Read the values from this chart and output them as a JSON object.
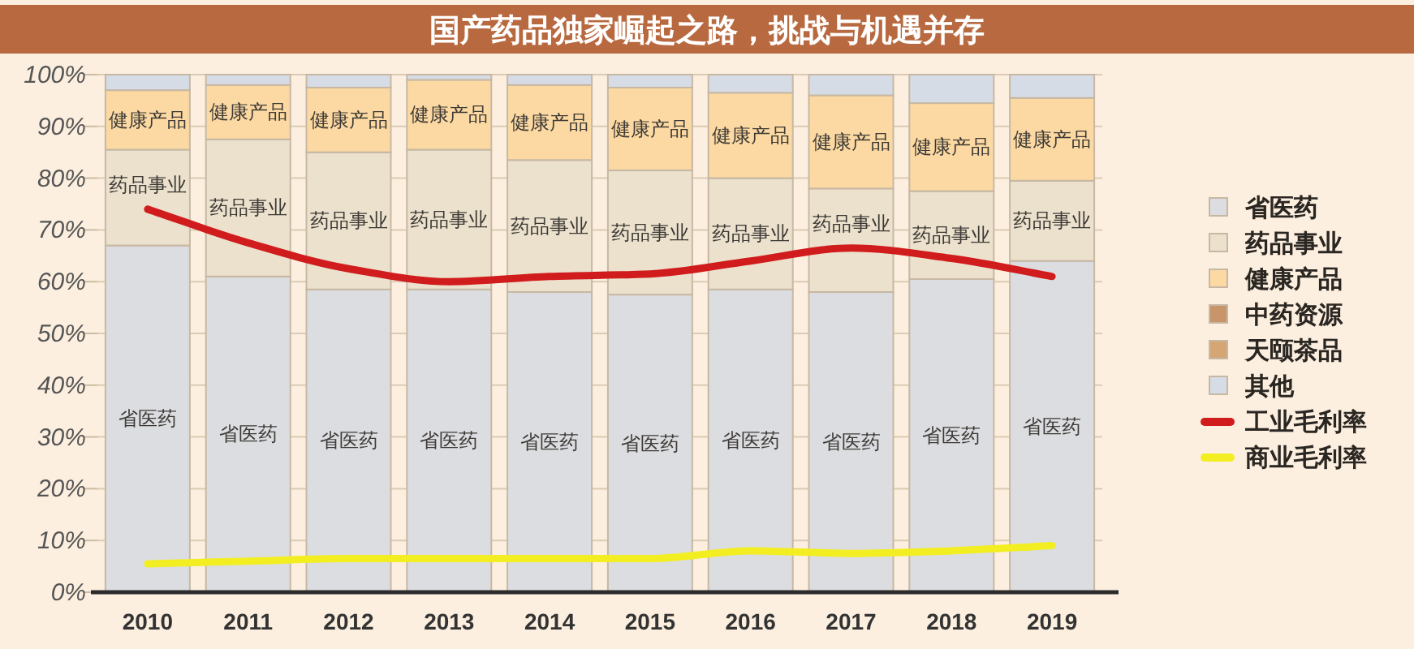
{
  "chart_data": {
    "type": "bar",
    "stacked": true,
    "title": "国产药品独家崛起之路，挑战与机遇并存",
    "categories": [
      "2010",
      "2011",
      "2012",
      "2013",
      "2014",
      "2015",
      "2016",
      "2017",
      "2018",
      "2019"
    ],
    "ylim": [
      0,
      100
    ],
    "yticks": [
      {
        "value": 0,
        "label": "0%"
      },
      {
        "value": 10,
        "label": "10%"
      },
      {
        "value": 20,
        "label": "20%"
      },
      {
        "value": 30,
        "label": "30%"
      },
      {
        "value": 40,
        "label": "40%"
      },
      {
        "value": 50,
        "label": "50%"
      },
      {
        "value": 60,
        "label": "60%"
      },
      {
        "value": 70,
        "label": "70%"
      },
      {
        "value": 80,
        "label": "80%"
      },
      {
        "value": 90,
        "label": "90%"
      },
      {
        "value": 100,
        "label": "100%"
      }
    ],
    "grid": "y",
    "legend": "right",
    "marker": "none",
    "line_style": "solid",
    "series": [
      {
        "name": "省医药",
        "color": "#dcdde1",
        "values": [
          67,
          61,
          58.5,
          58.5,
          58,
          57.5,
          58.5,
          58,
          60.5,
          64
        ],
        "value_labels": [
          "省医药",
          "省医药",
          "省医药",
          "省医药",
          "省医药",
          "省医药",
          "省医药",
          "省医药",
          "省医药",
          "省医药"
        ]
      },
      {
        "name": "药品事业",
        "color": "#ece1cd",
        "values": [
          18.5,
          26.5,
          26.5,
          27,
          25.5,
          24,
          21.5,
          20,
          17,
          15.5
        ],
        "value_labels": [
          "药品事业",
          "药品事业",
          "药品事业",
          "药品事业",
          "药品事业",
          "药品事业",
          "药品事业",
          "药品事业",
          "药品事业",
          "药品事业"
        ]
      },
      {
        "name": "健康产品",
        "color": "#fcd9a2",
        "values": [
          11.5,
          10.5,
          12.5,
          13.5,
          14.5,
          16,
          16.5,
          18,
          17,
          16
        ],
        "value_labels": [
          "健康产品",
          "健康产品",
          "健康产品",
          "健康产品",
          "健康产品",
          "健康产品",
          "健康产品",
          "健康产品",
          "健康产品",
          "健康产品"
        ]
      },
      {
        "name": "中药资源",
        "color": "#c8956a",
        "values": [
          null,
          null,
          null,
          null,
          null,
          null,
          null,
          null,
          null,
          null
        ]
      },
      {
        "name": "天颐茶品",
        "color": "#d6a574",
        "values": [
          null,
          null,
          null,
          null,
          null,
          null,
          null,
          null,
          null,
          null
        ]
      },
      {
        "name": "其他",
        "color": "#d6dce5",
        "values": [
          3,
          2,
          2.5,
          1,
          2,
          2.5,
          3.5,
          4,
          5.5,
          4.5
        ]
      },
      {
        "name": "工业毛利率",
        "type": "line",
        "color": "#d01c1c",
        "values": [
          74,
          67.5,
          62.5,
          60,
          61,
          61.5,
          64,
          66.5,
          64.5,
          61
        ]
      },
      {
        "name": "商业毛利率",
        "type": "line",
        "color": "#f2ee22",
        "values": [
          5.5,
          6,
          6.5,
          6.5,
          6.5,
          6.5,
          8,
          7.5,
          8,
          9
        ]
      }
    ]
  }
}
